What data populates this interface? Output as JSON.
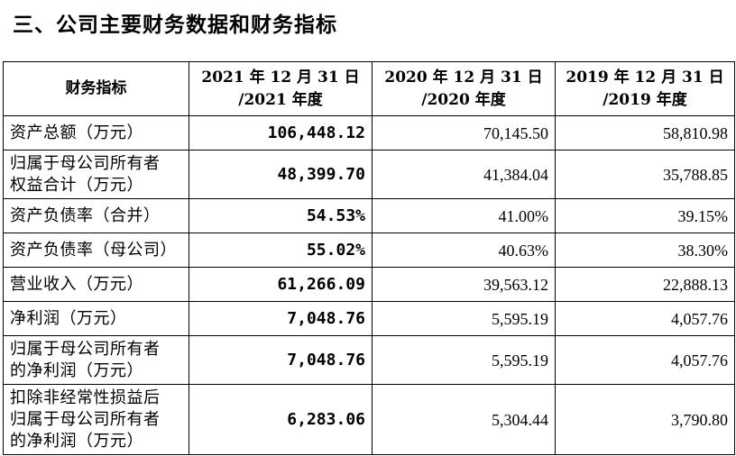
{
  "heading": "三、公司主要财务数据和财务指标",
  "columns": {
    "metric": "财务指标",
    "y2021_line1": "2021 年 12 月 31 日",
    "y2021_line2": "/2021 年度",
    "y2020_line1": "2020 年 12 月 31 日",
    "y2020_line2": "/2020 年度",
    "y2019_line1": "2019 年 12 月 31 日",
    "y2019_line2": "/2019 年度"
  },
  "rows": [
    {
      "lines": [
        "资产总额（万元）"
      ],
      "v2021": "106,448.12",
      "v2020": "70,145.50",
      "v2019": "58,810.98"
    },
    {
      "lines": [
        "归属于母公司所有者",
        "权益合计（万元）"
      ],
      "v2021": "48,399.70",
      "v2020": "41,384.04",
      "v2019": "35,788.85"
    },
    {
      "lines": [
        "资产负债率（合并）"
      ],
      "v2021": "54.53%",
      "v2020": "41.00%",
      "v2019": "39.15%"
    },
    {
      "lines": [
        "资产负债率（母公司）"
      ],
      "v2021": "55.02%",
      "v2020": "40.63%",
      "v2019": "38.30%"
    },
    {
      "lines": [
        "营业收入（万元）"
      ],
      "v2021": "61,266.09",
      "v2020": "39,563.12",
      "v2019": "22,888.13"
    },
    {
      "lines": [
        "净利润（万元）"
      ],
      "v2021": "7,048.76",
      "v2020": "5,595.19",
      "v2019": "4,057.76"
    },
    {
      "lines": [
        "归属于母公司所有者",
        "的净利润（万元）"
      ],
      "v2021": "7,048.76",
      "v2020": "5,595.19",
      "v2019": "4,057.76"
    },
    {
      "lines": [
        "扣除非经常性损益后",
        "归属于母公司所有者",
        "的净利润（万元）"
      ],
      "v2021": "6,283.06",
      "v2020": "5,304.44",
      "v2019": "3,790.80"
    }
  ]
}
